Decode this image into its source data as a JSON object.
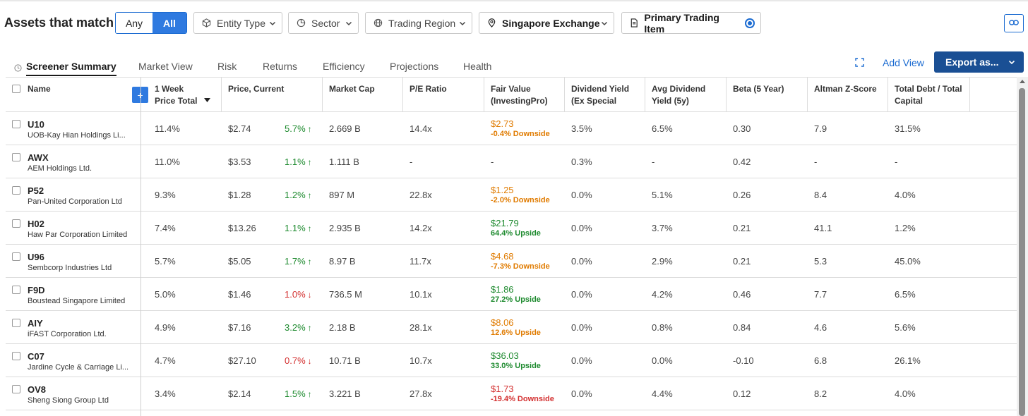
{
  "filters": {
    "title": "Assets that match",
    "any_label": "Any",
    "all_label": "All",
    "entity_type": "Entity Type",
    "sector": "Sector",
    "trading_region": "Trading Region",
    "exchange": "Singapore Exchange",
    "primary_item": "Primary Trading Item"
  },
  "tabs": [
    "Screener Summary",
    "Market View",
    "Risk",
    "Returns",
    "Efficiency",
    "Projections",
    "Health"
  ],
  "actions": {
    "add_view": "Add View",
    "export": "Export as..."
  },
  "columns": {
    "name": "Name",
    "week": [
      "1 Week",
      "Price Total"
    ],
    "price": "Price, Current",
    "mcap": "Market Cap",
    "pe": "P/E Ratio",
    "fv": [
      "Fair Value",
      "(InvestingPro)"
    ],
    "dy": [
      "Dividend Yield",
      "(Ex Special"
    ],
    "ady": [
      "Avg Dividend",
      "Yield (5y)"
    ],
    "beta": "Beta (5 Year)",
    "altman": "Altman Z-Score",
    "debt": [
      "Total Debt / Total",
      "Capital"
    ]
  },
  "rows": [
    {
      "ticker": "U10",
      "company": "UOB-Kay Hian Holdings Li...",
      "week": "11.4%",
      "price": "$2.74",
      "change": "5.7%",
      "dir": "up",
      "mcap": "2.669 B",
      "pe": "14.4x",
      "fv": "$2.73",
      "fv_note": "-0.4% Downside",
      "fv_color": "orange",
      "dy": "3.5%",
      "ady": "6.5%",
      "beta": "0.30",
      "altman": "7.9",
      "debt": "31.5%"
    },
    {
      "ticker": "AWX",
      "company": "AEM Holdings Ltd.",
      "week": "11.0%",
      "price": "$3.53",
      "change": "1.1%",
      "dir": "up",
      "mcap": "1.111 B",
      "pe": "-",
      "fv": "-",
      "fv_note": "",
      "fv_color": "plain",
      "dy": "0.3%",
      "ady": "-",
      "beta": "0.42",
      "altman": "-",
      "debt": "-"
    },
    {
      "ticker": "P52",
      "company": "Pan-United Corporation Ltd",
      "week": "9.3%",
      "price": "$1.28",
      "change": "1.2%",
      "dir": "up",
      "mcap": "897 M",
      "pe": "22.8x",
      "fv": "$1.25",
      "fv_note": "-2.0% Downside",
      "fv_color": "orange",
      "dy": "0.0%",
      "ady": "5.1%",
      "beta": "0.26",
      "altman": "8.4",
      "debt": "4.0%"
    },
    {
      "ticker": "H02",
      "company": "Haw Par Corporation Limited",
      "week": "7.4%",
      "price": "$13.26",
      "change": "1.1%",
      "dir": "up",
      "mcap": "2.935 B",
      "pe": "14.2x",
      "fv": "$21.79",
      "fv_note": "64.4% Upside",
      "fv_color": "green",
      "dy": "0.0%",
      "ady": "3.7%",
      "beta": "0.21",
      "altman": "41.1",
      "debt": "1.2%"
    },
    {
      "ticker": "U96",
      "company": "Sembcorp Industries Ltd",
      "week": "5.7%",
      "price": "$5.05",
      "change": "1.7%",
      "dir": "up",
      "mcap": "8.97 B",
      "pe": "11.7x",
      "fv": "$4.68",
      "fv_note": "-7.3% Downside",
      "fv_color": "orange",
      "dy": "0.0%",
      "ady": "2.9%",
      "beta": "0.21",
      "altman": "5.3",
      "debt": "45.0%"
    },
    {
      "ticker": "F9D",
      "company": "Boustead Singapore Limited",
      "week": "5.0%",
      "price": "$1.46",
      "change": "1.0%",
      "dir": "down",
      "mcap": "736.5 M",
      "pe": "10.1x",
      "fv": "$1.86",
      "fv_note": "27.2% Upside",
      "fv_color": "green",
      "dy": "0.0%",
      "ady": "4.2%",
      "beta": "0.46",
      "altman": "7.7",
      "debt": "6.5%"
    },
    {
      "ticker": "AIY",
      "company": "iFAST Corporation Ltd.",
      "week": "4.9%",
      "price": "$7.16",
      "change": "3.2%",
      "dir": "up",
      "mcap": "2.18 B",
      "pe": "28.1x",
      "fv": "$8.06",
      "fv_note": "12.6% Upside",
      "fv_color": "orange",
      "dy": "0.0%",
      "ady": "0.8%",
      "beta": "0.84",
      "altman": "4.6",
      "debt": "5.6%"
    },
    {
      "ticker": "C07",
      "company": "Jardine Cycle & Carriage Li...",
      "week": "4.7%",
      "price": "$27.10",
      "change": "0.7%",
      "dir": "down",
      "mcap": "10.71 B",
      "pe": "10.7x",
      "fv": "$36.03",
      "fv_note": "33.0% Upside",
      "fv_color": "green",
      "dy": "0.0%",
      "ady": "0.0%",
      "beta": "-0.10",
      "altman": "6.8",
      "debt": "26.1%"
    },
    {
      "ticker": "OV8",
      "company": "Sheng Siong Group Ltd",
      "week": "3.4%",
      "price": "$2.14",
      "change": "1.5%",
      "dir": "up",
      "mcap": "3.221 B",
      "pe": "27.8x",
      "fv": "$1.73",
      "fv_note": "-19.4% Downside",
      "fv_color": "red",
      "dy": "0.0%",
      "ady": "4.4%",
      "beta": "0.12",
      "altman": "8.2",
      "debt": "4.0%"
    }
  ]
}
